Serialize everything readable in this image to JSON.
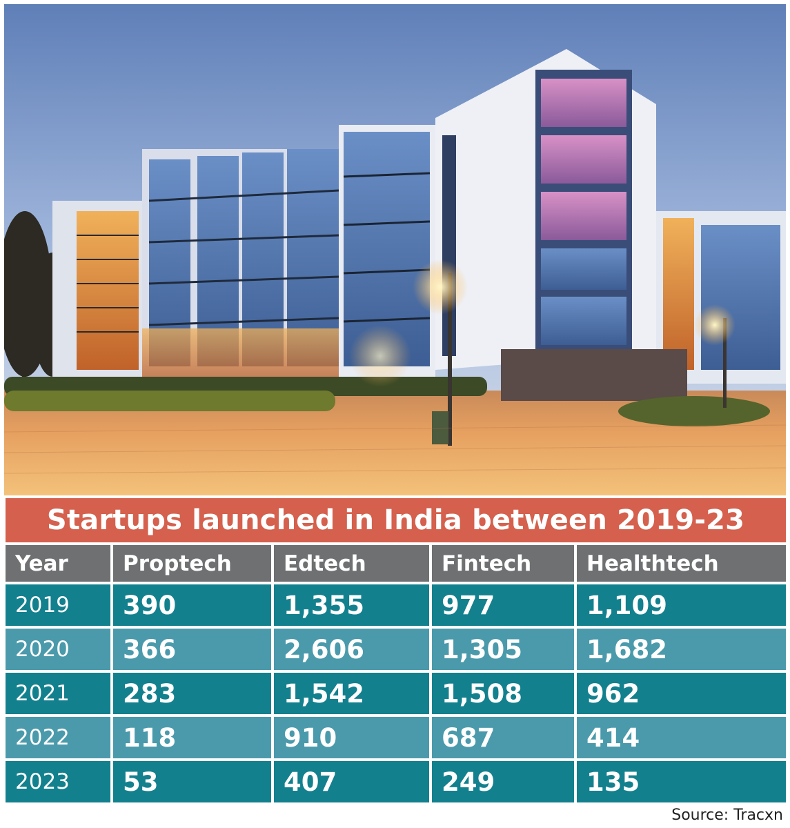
{
  "chart_data": {
    "type": "table",
    "title": "Startups launched in India between 2019-23",
    "columns": [
      "Year",
      "Proptech",
      "Edtech",
      "Fintech",
      "Healthtech"
    ],
    "rows": [
      [
        "2019",
        "390",
        "1,355",
        "977",
        "1,109"
      ],
      [
        "2020",
        "366",
        "2,606",
        "1,305",
        "1,682"
      ],
      [
        "2021",
        "283",
        "1,542",
        "1,508",
        "962"
      ],
      [
        "2022",
        "118",
        "910",
        "687",
        "414"
      ],
      [
        "2023",
        "53",
        "407",
        "249",
        "135"
      ]
    ],
    "source": "Source: Tracxn"
  },
  "colors": {
    "title_band": "#d4604d",
    "header_row": "#6e7072",
    "row_dark": "#13808e",
    "row_light": "#4a9aab"
  },
  "image": {
    "subject": "modern-apartment-buildings-photo"
  }
}
